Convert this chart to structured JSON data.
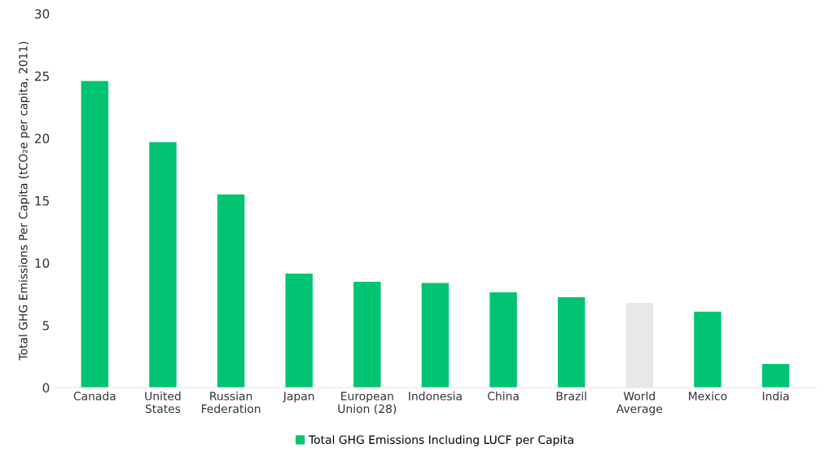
{
  "chart_data": {
    "type": "bar",
    "ylabel": "Total GHG Emissions Per Capita (tCO₂e per capita, 2011)",
    "categories": [
      "Canada",
      "United\nStates",
      "Russian\nFederation",
      "Japan",
      "European\nUnion (28)",
      "Indonesia",
      "China",
      "Brazil",
      "World\nAverage",
      "Mexico",
      "India"
    ],
    "series": [
      {
        "name": "Total GHG Emissions Including LUCF per Capita",
        "color": "#00c472",
        "colors": [
          "#00c472",
          "#00c472",
          "#00c472",
          "#00c472",
          "#00c472",
          "#00c472",
          "#00c472",
          "#00c472",
          "#e8e8e8",
          "#00c472",
          "#00c472"
        ],
        "values": [
          24.6,
          19.7,
          15.5,
          9.15,
          8.5,
          8.4,
          7.65,
          7.25,
          6.8,
          6.1,
          1.9
        ]
      }
    ],
    "ylim": [
      0,
      30
    ],
    "yticks": [
      0,
      5,
      10,
      15,
      20,
      25,
      30
    ],
    "grid": false,
    "legend": "bottom"
  }
}
